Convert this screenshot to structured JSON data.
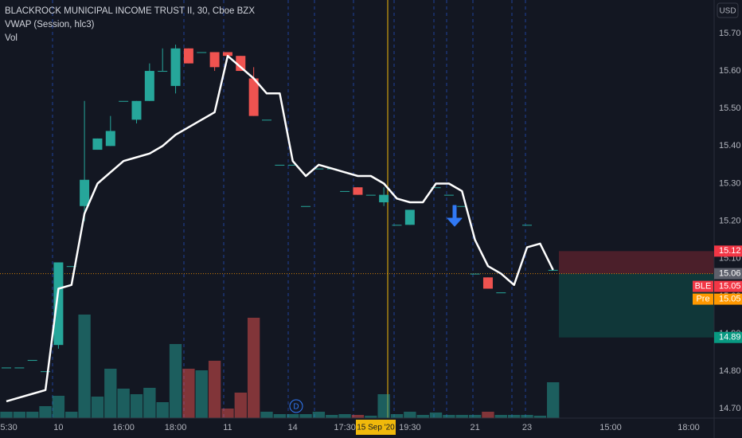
{
  "chart_data": {
    "type": "candlestick",
    "title": "BLACKROCK MUNICIPAL INCOME TRUST II, 30, Cboe BZX",
    "indicator": "VWAP (Session, hlc3)",
    "volume_label": "Vol",
    "currency": "USD",
    "crosshair_label": "15 Sep '20",
    "categories": [
      "15:30",
      null,
      null,
      null,
      "10",
      null,
      null,
      null,
      null,
      "16:00",
      null,
      null,
      null,
      "18:00",
      null,
      null,
      null,
      "11",
      null,
      null,
      null,
      null,
      "14",
      null,
      null,
      null,
      "17:30",
      null,
      null,
      null,
      null,
      "19:30",
      null,
      null,
      null,
      null,
      "21",
      null,
      null,
      null,
      "23",
      null,
      null
    ],
    "future_labels": [
      "15:00",
      "18:00"
    ],
    "open": [
      14.81,
      14.81,
      14.83,
      14.8,
      14.87,
      15.08,
      15.24,
      15.39,
      15.4,
      15.52,
      15.47,
      15.52,
      15.6,
      15.56,
      15.66,
      15.65,
      15.65,
      15.65,
      15.64,
      15.58,
      15.47,
      15.35,
      15.35,
      15.24,
      15.34,
      15.34,
      15.28,
      15.29,
      15.27,
      15.25,
      15.19,
      15.19,
      null,
      15.29,
      15.27,
      15.24,
      15.06,
      15.05,
      15.01,
      null,
      15.19,
      null,
      15.07
    ],
    "high": [
      14.81,
      14.81,
      14.83,
      14.8,
      15.09,
      15.08,
      15.52,
      15.42,
      15.48,
      15.52,
      15.52,
      15.62,
      15.66,
      15.67,
      15.66,
      15.65,
      15.65,
      15.65,
      15.64,
      15.61,
      15.47,
      15.35,
      15.35,
      15.24,
      15.34,
      15.34,
      15.28,
      15.29,
      15.27,
      15.29,
      15.19,
      15.23,
      null,
      15.29,
      15.27,
      15.24,
      15.06,
      15.05,
      15.01,
      null,
      15.19,
      null,
      15.07
    ],
    "low": [
      14.81,
      14.81,
      14.83,
      14.8,
      14.86,
      15.08,
      15.2,
      15.39,
      15.4,
      15.52,
      15.46,
      15.52,
      15.6,
      15.54,
      15.62,
      15.65,
      15.6,
      15.64,
      15.6,
      15.48,
      15.47,
      15.35,
      15.35,
      15.24,
      15.34,
      15.34,
      15.28,
      15.27,
      15.27,
      15.24,
      15.19,
      15.19,
      null,
      15.29,
      15.27,
      15.24,
      15.06,
      15.02,
      15.01,
      null,
      15.19,
      null,
      15.07
    ],
    "close": [
      14.81,
      14.81,
      14.83,
      14.8,
      15.09,
      15.08,
      15.31,
      15.42,
      15.44,
      15.52,
      15.52,
      15.6,
      15.6,
      15.66,
      15.62,
      15.65,
      15.61,
      15.64,
      15.6,
      15.48,
      15.47,
      15.35,
      15.35,
      15.24,
      15.34,
      15.34,
      15.28,
      15.27,
      15.27,
      15.27,
      15.19,
      15.23,
      null,
      15.29,
      15.27,
      15.24,
      15.06,
      15.02,
      15.01,
      null,
      15.19,
      null,
      15.07
    ],
    "vwap": [
      14.72,
      14.73,
      14.74,
      14.75,
      15.02,
      15.03,
      15.22,
      15.3,
      15.33,
      15.36,
      15.37,
      15.38,
      15.4,
      15.43,
      15.45,
      15.47,
      15.49,
      15.64,
      15.61,
      15.58,
      15.54,
      15.54,
      15.36,
      15.32,
      15.35,
      15.34,
      15.33,
      15.32,
      15.32,
      15.3,
      15.26,
      15.25,
      15.25,
      15.3,
      15.3,
      15.28,
      15.15,
      15.08,
      15.06,
      15.03,
      15.13,
      15.14,
      15.07
    ],
    "volume": [
      8,
      8,
      8,
      15,
      28,
      8,
      130,
      27,
      62,
      37,
      30,
      38,
      20,
      93,
      62,
      60,
      72,
      12,
      32,
      126,
      8,
      5,
      5,
      5,
      8,
      4,
      5,
      4,
      3,
      30,
      5,
      8,
      4,
      7,
      4,
      4,
      4,
      8,
      4,
      4,
      4,
      3,
      45
    ],
    "up_color": "#26a69a",
    "down_color": "#ef5350",
    "vwap_color": "#ffffff",
    "ylim": [
      14.6222,
      15.7889
    ],
    "yticks": [
      {
        "value": 14.7,
        "label": "14.70"
      },
      {
        "value": 14.8,
        "label": "14.80"
      },
      {
        "value": 14.9,
        "label": "14.90"
      },
      {
        "value": 15.0,
        "label": "15.00"
      },
      {
        "value": 15.1,
        "label": "15.10"
      },
      {
        "value": 15.2,
        "label": "15.20"
      },
      {
        "value": 15.3,
        "label": "15.30"
      },
      {
        "value": 15.4,
        "label": "15.40"
      },
      {
        "value": 15.5,
        "label": "15.50"
      },
      {
        "value": 15.6,
        "label": "15.60"
      },
      {
        "value": 15.7,
        "label": "15.70"
      }
    ],
    "price_markers": [
      {
        "value": 15.12,
        "color": "#f23645"
      },
      {
        "value": 15.06,
        "color": "#5d606b"
      },
      {
        "name": "BLE",
        "value": 15.05,
        "color": "#f23645"
      },
      {
        "name": "Pre",
        "value": 15.05,
        "color": "#ff9800"
      },
      {
        "value": 14.89,
        "color": "#089981"
      }
    ],
    "dividend": "D"
  }
}
